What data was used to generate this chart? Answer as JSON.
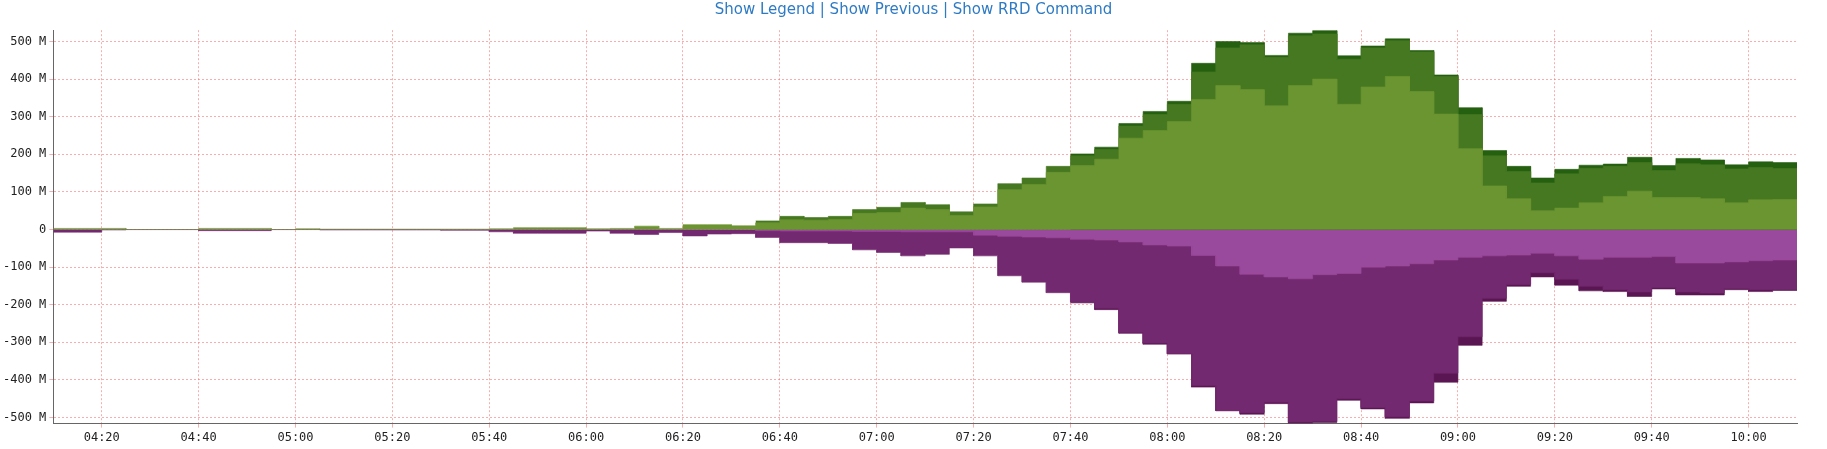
{
  "chart_data": {
    "type": "area",
    "annotations": [
      "Show Legend | Show Previous | Show RRD Command"
    ],
    "x": [
      4.1667,
      4.25,
      4.25,
      4.3333,
      4.3333,
      4.4167,
      4.4167,
      4.5,
      4.5,
      4.5833,
      4.5833,
      4.6667,
      4.6667,
      4.75,
      4.75,
      4.8333,
      4.8333,
      4.9167,
      4.9167,
      5,
      5,
      5.0833,
      5.0833,
      5.1667,
      5.1667,
      5.25,
      5.25,
      5.3333,
      5.3333,
      5.4167,
      5.4167,
      5.5,
      5.5,
      5.5833,
      5.5833,
      5.6667,
      5.6667,
      5.75,
      5.75,
      5.8333,
      5.8333,
      5.9167,
      5.9167,
      6,
      6,
      6.0833,
      6.0833,
      6.1667,
      6.1667,
      6.25,
      6.25,
      6.3333,
      6.3333,
      6.4167,
      6.4167,
      6.5,
      6.5,
      6.5833,
      6.5833,
      6.6667,
      6.6667,
      6.75,
      6.75,
      6.8333,
      6.8333,
      6.9167,
      6.9167,
      7,
      7,
      7.0833,
      7.0833,
      7.1667,
      7.1667,
      7.25,
      7.25,
      7.3333,
      7.3333,
      7.4167,
      7.4167,
      7.5,
      7.5,
      7.5833,
      7.5833,
      7.6667,
      7.6667,
      7.75,
      7.75,
      7.8333,
      7.8333,
      7.9167,
      7.9167,
      8,
      8,
      8.0833,
      8.0833,
      8.1667,
      8.1667,
      8.25,
      8.25,
      8.3333,
      8.3333,
      8.4167,
      8.4167,
      8.5,
      8.5,
      8.5833,
      8.5833,
      8.6667,
      8.6667,
      8.75,
      8.75,
      8.8333,
      8.8333,
      8.9167,
      8.9167,
      9,
      9,
      9.0833,
      9.0833,
      9.1667,
      9.1667,
      9.25,
      9.25,
      9.3333,
      9.3333,
      9.4167,
      9.4167,
      9.5,
      9.5,
      9.5833,
      9.5833,
      9.6667,
      9.6667,
      9.75,
      9.75,
      9.8333,
      9.8333,
      9.9167,
      9.9167,
      10,
      10,
      10.0833,
      10.0833,
      10.1667
    ],
    "series": [
      {
        "color": "#6b9531",
        "values": [
          3,
          3,
          3,
          3,
          3,
          3,
          0,
          0,
          0,
          0,
          0,
          0,
          3,
          3,
          3,
          3,
          3,
          3,
          0,
          0,
          2,
          2,
          1,
          1,
          1,
          1,
          1,
          1,
          1,
          1,
          1,
          1,
          1,
          1,
          1,
          1,
          2,
          2,
          5,
          5,
          5,
          5,
          5,
          5,
          2,
          2,
          3,
          3,
          9,
          9,
          3,
          3,
          13,
          13,
          13,
          13,
          10,
          10,
          18,
          18,
          26,
          26,
          25,
          25,
          27,
          27,
          43,
          43,
          45,
          45,
          57,
          57,
          53,
          53,
          37,
          37,
          60,
          60,
          106,
          106,
          120,
          120,
          152,
          152,
          170,
          170,
          187,
          187,
          243,
          243,
          263,
          263,
          287,
          287,
          346,
          346,
          383,
          383,
          372,
          372,
          329,
          329,
          383,
          383,
          400,
          400,
          333,
          333,
          379,
          379,
          407,
          407,
          367,
          367,
          307,
          307,
          215,
          215,
          116,
          116,
          82,
          82,
          50,
          50,
          57,
          57,
          71,
          71,
          88,
          88,
          102,
          102,
          85,
          85,
          85,
          85,
          82,
          82,
          71,
          71,
          79,
          79,
          80,
          80
        ]
      },
      {
        "color": "#467822",
        "values": [
          null,
          null,
          null,
          null,
          null,
          null,
          null,
          null,
          null,
          null,
          null,
          null,
          null,
          null,
          null,
          null,
          null,
          null,
          null,
          null,
          null,
          null,
          null,
          null,
          null,
          null,
          null,
          null,
          null,
          null,
          null,
          null,
          null,
          null,
          null,
          null,
          null,
          null,
          null,
          null,
          null,
          null,
          null,
          null,
          null,
          null,
          null,
          null,
          null,
          null,
          null,
          null,
          null,
          null,
          null,
          null,
          null,
          null,
          23,
          23,
          35,
          35,
          32,
          32,
          35,
          35,
          53,
          53,
          59,
          59,
          72,
          72,
          66,
          66,
          47,
          47,
          68,
          68,
          122,
          122,
          137,
          137,
          168,
          168,
          196,
          196,
          213,
          213,
          275,
          275,
          306,
          306,
          333,
          333,
          419,
          419,
          483,
          483,
          491,
          491,
          458,
          458,
          515,
          515,
          520,
          520,
          453,
          453,
          483,
          483,
          502,
          502,
          472,
          472,
          407,
          407,
          306,
          306,
          196,
          196,
          154,
          154,
          124,
          124,
          148,
          148,
          163,
          163,
          168,
          168,
          178,
          178,
          157,
          157,
          175,
          175,
          172,
          172,
          161,
          161,
          165,
          165,
          162,
          162
        ]
      },
      {
        "color": "#255f10",
        "values": [
          null,
          null,
          null,
          null,
          null,
          null,
          null,
          null,
          null,
          null,
          null,
          null,
          null,
          null,
          null,
          null,
          null,
          null,
          null,
          null,
          null,
          null,
          null,
          null,
          null,
          null,
          null,
          null,
          null,
          null,
          null,
          null,
          null,
          null,
          null,
          null,
          null,
          null,
          null,
          null,
          null,
          null,
          null,
          null,
          null,
          null,
          null,
          null,
          null,
          null,
          null,
          null,
          null,
          null,
          null,
          null,
          null,
          null,
          null,
          null,
          null,
          null,
          null,
          null,
          null,
          null,
          null,
          null,
          null,
          null,
          null,
          null,
          null,
          null,
          null,
          null,
          null,
          null,
          null,
          null,
          null,
          null,
          null,
          null,
          201,
          201,
          219,
          219,
          282,
          282,
          314,
          314,
          341,
          341,
          442,
          442,
          500,
          500,
          497,
          497,
          463,
          463,
          522,
          522,
          529,
          529,
          462,
          462,
          488,
          488,
          507,
          507,
          476,
          476,
          411,
          411,
          324,
          324,
          210,
          210,
          168,
          168,
          137,
          137,
          160,
          160,
          171,
          171,
          174,
          174,
          192,
          192,
          170,
          170,
          189,
          189,
          185,
          185,
          172,
          172,
          180,
          180,
          178,
          178
        ]
      },
      {
        "color": "#9a4a9c",
        "values": [
          0,
          0,
          0,
          0,
          0,
          0,
          0,
          0,
          0,
          0,
          0,
          0,
          0,
          0,
          0,
          0,
          0,
          0,
          0,
          0,
          0,
          0,
          0,
          0,
          0,
          0,
          0,
          0,
          0,
          0,
          0,
          0,
          0,
          0,
          0,
          0,
          0,
          0,
          0,
          0,
          0,
          0,
          0,
          0,
          0,
          0,
          0,
          0,
          0,
          0,
          0,
          0,
          0,
          0,
          0,
          0,
          0,
          0,
          -3,
          -3,
          -4,
          -4,
          -4,
          -4,
          -4,
          -4,
          -5,
          -5,
          -5,
          -5,
          -6,
          -6,
          -6,
          -6,
          -6,
          -6,
          -15,
          -15,
          -18,
          -18,
          -20,
          -20,
          -22,
          -22,
          -26,
          -26,
          -28,
          -28,
          -33,
          -33,
          -41,
          -41,
          -44,
          -44,
          -69,
          -69,
          -97,
          -97,
          -119,
          -119,
          -126,
          -126,
          -131,
          -131,
          -120,
          -120,
          -117,
          -117,
          -100,
          -100,
          -97,
          -97,
          -91,
          -91,
          -81,
          -81,
          -74,
          -74,
          -70,
          -70,
          -68,
          -68,
          -63,
          -63,
          -70,
          -70,
          -79,
          -79,
          -74,
          -74,
          -74,
          -74,
          -72,
          -72,
          -89,
          -89,
          -89,
          -89,
          -86,
          -86,
          -83,
          -83,
          -81,
          -81
        ]
      },
      {
        "color": "#73296f",
        "values": [
          -7,
          -7,
          -7,
          -7,
          -1,
          -1,
          0,
          0,
          0,
          0,
          0,
          0,
          -3,
          -3,
          -3,
          -3,
          -3,
          -3,
          0,
          0,
          0,
          0,
          -1,
          -1,
          -1,
          -1,
          -1,
          -1,
          -1,
          -1,
          -1,
          -1,
          -2,
          -2,
          -2,
          -2,
          -6,
          -6,
          -10,
          -10,
          -10,
          -10,
          -10,
          -10,
          -4,
          -4,
          -10,
          -10,
          -13,
          -13,
          -8,
          -8,
          -17,
          -17,
          -12,
          -12,
          -11,
          -11,
          -21,
          -21,
          -35,
          -35,
          -35,
          -35,
          -37,
          -37,
          -54,
          -54,
          -61,
          -61,
          -70,
          -70,
          -66,
          -66,
          -49,
          -49,
          -70,
          -70,
          -123,
          -123,
          -140,
          -140,
          -168,
          -168,
          -193,
          -193,
          -209,
          -209,
          -274,
          -274,
          -302,
          -302,
          -330,
          -330,
          -415,
          -415,
          -481,
          -481,
          -487,
          -487,
          -459,
          -459,
          -512,
          -512,
          -510,
          -510,
          -450,
          -450,
          -473,
          -473,
          -498,
          -498,
          -456,
          -456,
          -382,
          -382,
          -285,
          -285,
          -183,
          -183,
          -146,
          -146,
          -115,
          -115,
          -132,
          -132,
          -151,
          -151,
          -160,
          -160,
          -166,
          -166,
          -155,
          -155,
          -166,
          -166,
          -169,
          -169,
          -157,
          -157,
          -160,
          -160,
          -160,
          -160
        ]
      },
      {
        "color": "#5a1653",
        "values": [
          null,
          null,
          null,
          null,
          null,
          null,
          null,
          null,
          null,
          null,
          null,
          null,
          null,
          null,
          null,
          null,
          null,
          null,
          null,
          null,
          null,
          null,
          null,
          null,
          null,
          null,
          null,
          null,
          null,
          null,
          null,
          null,
          null,
          null,
          null,
          null,
          null,
          null,
          null,
          null,
          null,
          null,
          null,
          null,
          null,
          null,
          null,
          null,
          null,
          null,
          null,
          null,
          null,
          null,
          null,
          null,
          null,
          null,
          null,
          null,
          null,
          null,
          null,
          null,
          null,
          null,
          null,
          null,
          null,
          null,
          null,
          null,
          null,
          null,
          null,
          null,
          null,
          null,
          null,
          null,
          null,
          null,
          null,
          null,
          -195,
          -195,
          -213,
          -213,
          -276,
          -276,
          -305,
          -305,
          -331,
          -331,
          -419,
          -419,
          -482,
          -482,
          -491,
          -491,
          -463,
          -463,
          -515,
          -515,
          -513,
          -513,
          -454,
          -454,
          -477,
          -477,
          -502,
          -502,
          -461,
          -461,
          -406,
          -406,
          -308,
          -308,
          -191,
          -191,
          -151,
          -151,
          -126,
          -126,
          -148,
          -148,
          -163,
          -163,
          -165,
          -165,
          -178,
          -178,
          -158,
          -158,
          -174,
          -174,
          -174,
          -174,
          -160,
          -160,
          -165,
          -165,
          -162,
          -162
        ]
      }
    ],
    "xlim": [
      4.1667,
      10.1667
    ],
    "xticks": [
      {
        "value": 4.3333,
        "label": "04:20"
      },
      {
        "value": 4.6667,
        "label": "04:40"
      },
      {
        "value": 5,
        "label": "05:00"
      },
      {
        "value": 5.3333,
        "label": "05:20"
      },
      {
        "value": 5.6667,
        "label": "05:40"
      },
      {
        "value": 6,
        "label": "06:00"
      },
      {
        "value": 6.3333,
        "label": "06:20"
      },
      {
        "value": 6.6667,
        "label": "06:40"
      },
      {
        "value": 7,
        "label": "07:00"
      },
      {
        "value": 7.3333,
        "label": "07:20"
      },
      {
        "value": 7.6667,
        "label": "07:40"
      },
      {
        "value": 8,
        "label": "08:00"
      },
      {
        "value": 8.3333,
        "label": "08:20"
      },
      {
        "value": 8.6667,
        "label": "08:40"
      },
      {
        "value": 9,
        "label": "09:00"
      },
      {
        "value": 9.3333,
        "label": "09:20"
      },
      {
        "value": 9.6667,
        "label": "09:40"
      },
      {
        "value": 10,
        "label": "10:00"
      }
    ],
    "ylim": [
      -516,
      530
    ],
    "yticks": [
      {
        "value": -500,
        "label": "-500 M"
      },
      {
        "value": -400,
        "label": "-400 M"
      },
      {
        "value": -300,
        "label": "-300 M"
      },
      {
        "value": -200,
        "label": "-200 M"
      },
      {
        "value": -100,
        "label": "-100 M"
      },
      0,
      {
        "value": 100,
        "label": "100 M"
      },
      {
        "value": 200,
        "label": "200 M"
      },
      {
        "value": 300,
        "label": "300 M"
      },
      {
        "value": 400,
        "label": "400 M"
      },
      {
        "value": 500,
        "label": "500 M"
      }
    ],
    "grid": true,
    "legend": false
  }
}
